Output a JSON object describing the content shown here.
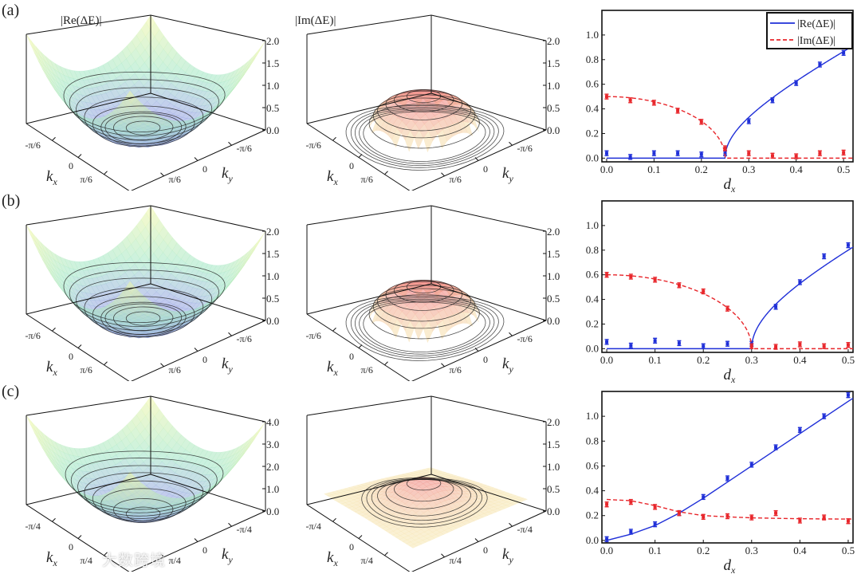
{
  "rows": [
    {
      "label": "(a)",
      "re_panel": {
        "title": "|Re(ΔE)|",
        "surface": "re-bowl",
        "zticks": [
          "0.0",
          "0.5",
          "1.0",
          "1.5",
          "2.0"
        ],
        "zmax": 2,
        "kticks": [
          "-π/6",
          "0",
          "π/6"
        ],
        "kx": "k",
        "kx_sub": "x",
        "ky": "k",
        "ky_sub": "y"
      },
      "im_panel": {
        "title": "|Im(ΔE)|",
        "surface": "im-dome",
        "zticks": [
          "0.0",
          "0.5",
          "1.0",
          "1.5",
          "2.0"
        ],
        "zmax": 2,
        "kticks": [
          "-π/6",
          "0",
          "π/6"
        ],
        "kx": "k",
        "kx_sub": "x",
        "ky": "k",
        "ky_sub": "y"
      }
    },
    {
      "label": "(b)",
      "re_panel": {
        "title": "",
        "surface": "re-bowl",
        "zticks": [
          "0.0",
          "0.5",
          "1.0",
          "1.5",
          "2.0"
        ],
        "zmax": 2,
        "kticks": [
          "-π/6",
          "0",
          "π/6"
        ],
        "kx": "k",
        "kx_sub": "x",
        "ky": "k",
        "ky_sub": "y"
      },
      "im_panel": {
        "title": "",
        "surface": "im-dome",
        "zticks": [
          "0.0",
          "0.5",
          "1.0",
          "1.5",
          "2.0"
        ],
        "zmax": 2,
        "kticks": [
          "-π/6",
          "0",
          "π/6"
        ],
        "kx": "k",
        "kx_sub": "x",
        "ky": "k",
        "ky_sub": "y"
      }
    },
    {
      "label": "(c)",
      "re_panel": {
        "title": "",
        "surface": "re-parabola",
        "zticks": [
          "0.0",
          "1.0",
          "2.0",
          "3.0",
          "4.0"
        ],
        "zmax": 4,
        "kticks": [
          "-π/4",
          "0",
          "π/4"
        ],
        "kx": "k",
        "kx_sub": "x",
        "ky": "k",
        "ky_sub": "y"
      },
      "im_panel": {
        "title": "",
        "surface": "im-dome-plane",
        "zticks": [
          "0.0",
          "0.5",
          "1.0",
          "1.5",
          "2.0"
        ],
        "zmax": 2,
        "kticks": [
          "-π/4",
          "0",
          "π/4"
        ],
        "kx": "k",
        "kx_sub": "x",
        "ky": "k",
        "ky_sub": "y"
      }
    }
  ],
  "colors": {
    "re": "#1f2fd8",
    "im": "#e8262b"
  },
  "chart_data": [
    {
      "type": "line",
      "panel": "a",
      "xlabel": "d",
      "xlabel_sub": "x",
      "xlim": [
        -0.01,
        0.52
      ],
      "ylim": [
        -0.03,
        1.2
      ],
      "xticks": [
        0.0,
        0.1,
        0.2,
        0.3,
        0.4,
        0.5
      ],
      "yticks": [
        0.0,
        0.2,
        0.4,
        0.6,
        0.8,
        1.0
      ],
      "legend": {
        "position": "top-right",
        "entries": [
          "|Re(ΔE)|",
          "|Im(ΔE)|"
        ]
      },
      "critical_dx": 0.25,
      "fit_model": "Re=2*sqrt(max(0,dx^2-dc^2)), Im=2*sqrt(max(0,dc^2-dx^2))",
      "x": [
        0,
        0.05,
        0.1,
        0.15,
        0.2,
        0.25,
        0.3,
        0.35,
        0.4,
        0.45,
        0.5
      ],
      "series": [
        {
          "name": "|Re(ΔE)|",
          "style": "solid",
          "values": [
            0.04,
            0.01,
            0.04,
            0.04,
            0.03,
            0.04,
            0.3,
            0.47,
            0.61,
            0.76,
            0.855
          ],
          "err": 0.015
        },
        {
          "name": "|Im(ΔE)|",
          "style": "dashed",
          "values": [
            0.5,
            0.47,
            0.45,
            0.385,
            0.295,
            0.08,
            0.04,
            0.02,
            0.015,
            0.04,
            0.045
          ],
          "err": 0.018
        }
      ]
    },
    {
      "type": "line",
      "panel": "b",
      "xlabel": "d",
      "xlabel_sub": "x",
      "xlim": [
        -0.01,
        0.51
      ],
      "ylim": [
        -0.03,
        1.2
      ],
      "xticks": [
        0.0,
        0.1,
        0.2,
        0.3,
        0.4,
        0.5
      ],
      "yticks": [
        0.0,
        0.2,
        0.4,
        0.6,
        0.8,
        1.0
      ],
      "critical_dx": 0.3,
      "fit_model": "Re=2*sqrt(max(0,dx^2-dc^2)), Im=2*sqrt(max(0,dc^2-dx^2))",
      "x": [
        0,
        0.05,
        0.1,
        0.15,
        0.2,
        0.25,
        0.3,
        0.35,
        0.4,
        0.45,
        0.5
      ],
      "series": [
        {
          "name": "|Re(ΔE)|",
          "style": "solid",
          "values": [
            0.055,
            0.025,
            0.065,
            0.045,
            0.02,
            0.04,
            0.04,
            0.34,
            0.54,
            0.75,
            0.84
          ],
          "err": 0.015
        },
        {
          "name": "|Im(ΔE)|",
          "style": "dashed",
          "values": [
            0.6,
            0.585,
            0.56,
            0.515,
            0.465,
            0.325,
            0.02,
            0.015,
            0.035,
            0.02,
            0.03
          ],
          "err": 0.018
        }
      ]
    },
    {
      "type": "line",
      "panel": "c",
      "xlabel": "d",
      "xlabel_sub": "x",
      "xlim": [
        -0.01,
        0.51
      ],
      "ylim": [
        -0.02,
        1.2
      ],
      "xticks": [
        0.0,
        0.1,
        0.2,
        0.3,
        0.4,
        0.5
      ],
      "yticks": [
        0.0,
        0.2,
        0.4,
        0.6,
        0.8,
        1.0
      ],
      "x": [
        0,
        0.05,
        0.1,
        0.15,
        0.2,
        0.25,
        0.3,
        0.35,
        0.4,
        0.45,
        0.5
      ],
      "series": [
        {
          "name": "|Re(ΔE)|",
          "style": "solid",
          "values": [
            0.01,
            0.07,
            0.13,
            0.22,
            0.35,
            0.5,
            0.61,
            0.75,
            0.89,
            1.0,
            1.17
          ],
          "err": 0.01,
          "fit_x": [
            0,
            0.05,
            0.1,
            0.15,
            0.2,
            0.25,
            0.3,
            0.35,
            0.4,
            0.45,
            0.5,
            0.51
          ],
          "fit_y": [
            0.0,
            0.05,
            0.12,
            0.22,
            0.34,
            0.47,
            0.6,
            0.73,
            0.86,
            0.99,
            1.12,
            1.145
          ]
        },
        {
          "name": "|Im(ΔE)|",
          "style": "dashed",
          "values": [
            0.29,
            0.31,
            0.27,
            0.22,
            0.19,
            0.195,
            0.185,
            0.22,
            0.16,
            0.185,
            0.155
          ],
          "err": 0.015,
          "fit_x": [
            0,
            0.05,
            0.1,
            0.15,
            0.2,
            0.25,
            0.3,
            0.35,
            0.4,
            0.45,
            0.5,
            0.51
          ],
          "fit_y": [
            0.33,
            0.32,
            0.28,
            0.23,
            0.2,
            0.19,
            0.182,
            0.178,
            0.175,
            0.173,
            0.172,
            0.172
          ]
        }
      ]
    }
  ],
  "watermark": "大数跨境"
}
